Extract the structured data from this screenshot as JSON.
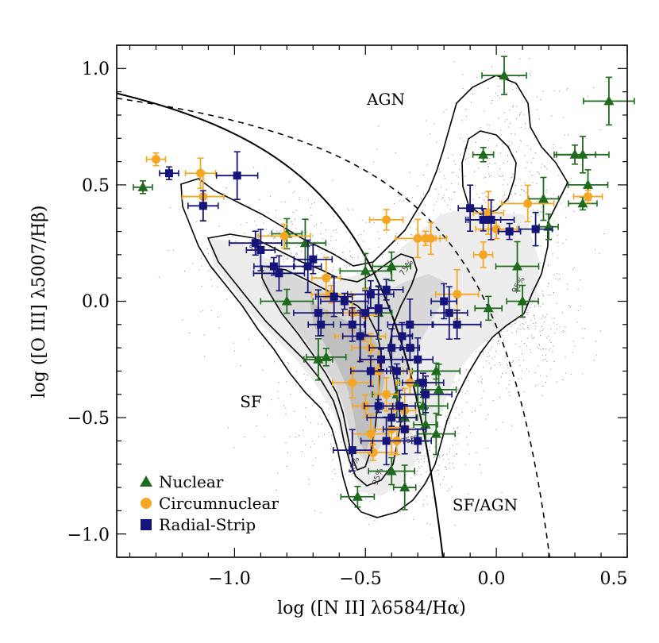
{
  "chart_data": {
    "type": "scatter",
    "xlabel": "log ([N II] λ6584/Hα)",
    "ylabel": "log ([O III] λ5007/Hβ)",
    "xlim": [
      -1.45,
      0.5
    ],
    "ylim": [
      -1.1,
      1.1
    ],
    "x_ticks": [
      "−1.0",
      "−0.5",
      "0.0",
      "0.5"
    ],
    "x_tick_values": [
      -1.0,
      -0.5,
      0.0,
      0.5
    ],
    "y_ticks": [
      "1.0",
      "0.5",
      "0.0",
      "−0.5",
      "−1.0"
    ],
    "y_tick_values": [
      1.0,
      0.5,
      0.0,
      -0.5,
      -1.0
    ],
    "region_labels": {
      "agn": "AGN",
      "sf": "SF",
      "composite": "SF/AGN"
    },
    "contour_labels": [
      "75%",
      "50%",
      "75%",
      "95%",
      "5%",
      "95%"
    ],
    "legend_position": "bottom-left",
    "series": [
      {
        "name": "Nuclear",
        "marker": "triangle",
        "color": "#1e6b1e",
        "points": [
          [
            -1.35,
            0.49
          ],
          [
            -0.8,
            0.29
          ],
          [
            -0.73,
            0.25
          ],
          [
            -0.8,
            -0.0
          ],
          [
            -0.68,
            -0.25
          ],
          [
            -0.65,
            -0.24
          ],
          [
            -0.5,
            0.13
          ],
          [
            -0.45,
            -0.05
          ],
          [
            -0.4,
            0.15
          ],
          [
            -0.38,
            -0.4
          ],
          [
            -0.35,
            -0.5
          ],
          [
            -0.3,
            -0.35
          ],
          [
            -0.23,
            -0.3
          ],
          [
            -0.27,
            -0.53
          ],
          [
            -0.22,
            -0.38
          ],
          [
            -0.4,
            -0.73
          ],
          [
            -0.35,
            -0.8
          ],
          [
            -0.53,
            -0.84
          ],
          [
            0.03,
            0.97
          ],
          [
            -0.05,
            0.63
          ],
          [
            0.1,
            -0.0
          ],
          [
            0.08,
            0.15
          ],
          [
            0.2,
            0.32
          ],
          [
            0.18,
            0.44
          ],
          [
            0.3,
            0.63
          ],
          [
            0.33,
            0.63
          ],
          [
            0.33,
            0.42
          ],
          [
            0.35,
            0.5
          ],
          [
            0.43,
            0.86
          ],
          [
            -0.03,
            -0.03
          ],
          [
            -0.23,
            -0.57
          ],
          [
            -0.28,
            -0.45
          ]
        ]
      },
      {
        "name": "Circumnuclear",
        "marker": "circle",
        "color": "#f5a623",
        "points": [
          [
            -1.3,
            0.61
          ],
          [
            -1.13,
            0.55
          ],
          [
            -1.12,
            0.45
          ],
          [
            -0.81,
            0.28
          ],
          [
            -0.65,
            0.1
          ],
          [
            -0.63,
            0.03
          ],
          [
            -0.55,
            -0.05
          ],
          [
            -0.5,
            -0.06
          ],
          [
            -0.48,
            -0.2
          ],
          [
            -0.45,
            -0.3
          ],
          [
            -0.5,
            -0.45
          ],
          [
            -0.48,
            -0.57
          ],
          [
            -0.47,
            -0.65
          ],
          [
            -0.42,
            -0.4
          ],
          [
            -0.4,
            -0.55
          ],
          [
            -0.38,
            -0.6
          ],
          [
            -0.35,
            -0.47
          ],
          [
            -0.42,
            0.35
          ],
          [
            -0.3,
            0.27
          ],
          [
            -0.27,
            0.27
          ],
          [
            -0.25,
            0.27
          ],
          [
            -0.15,
            0.03
          ],
          [
            -0.05,
            0.2
          ],
          [
            -0.03,
            0.38
          ],
          [
            0.0,
            0.31
          ],
          [
            0.12,
            0.42
          ],
          [
            0.35,
            0.45
          ],
          [
            -0.55,
            -0.35
          ],
          [
            -0.52,
            -0.15
          ],
          [
            -0.33,
            -0.35
          ]
        ]
      },
      {
        "name": "Radial-Strip",
        "marker": "square",
        "color": "#14147a",
        "points": [
          [
            -1.25,
            0.55
          ],
          [
            -1.12,
            0.41
          ],
          [
            -0.99,
            0.54
          ],
          [
            -0.92,
            0.25
          ],
          [
            -0.9,
            0.22
          ],
          [
            -0.85,
            0.15
          ],
          [
            -0.83,
            0.12
          ],
          [
            -0.72,
            0.15
          ],
          [
            -0.7,
            0.18
          ],
          [
            -0.68,
            -0.05
          ],
          [
            -0.67,
            -0.1
          ],
          [
            -0.62,
            0.02
          ],
          [
            -0.58,
            -0.0
          ],
          [
            -0.55,
            -0.1
          ],
          [
            -0.52,
            -0.15
          ],
          [
            -0.48,
            0.03
          ],
          [
            -0.45,
            -0.03
          ],
          [
            -0.42,
            0.05
          ],
          [
            -0.4,
            -0.2
          ],
          [
            -0.38,
            -0.3
          ],
          [
            -0.37,
            -0.45
          ],
          [
            -0.35,
            -0.55
          ],
          [
            -0.33,
            -0.2
          ],
          [
            -0.3,
            -0.25
          ],
          [
            -0.28,
            -0.35
          ],
          [
            -0.27,
            -0.4
          ],
          [
            -0.45,
            -0.45
          ],
          [
            -0.48,
            -0.3
          ],
          [
            -0.42,
            -0.6
          ],
          [
            -0.3,
            -0.6
          ],
          [
            -0.55,
            -0.64
          ],
          [
            -0.4,
            -0.5
          ],
          [
            -0.2,
            -0.0
          ],
          [
            -0.18,
            -0.05
          ],
          [
            -0.15,
            -0.1
          ],
          [
            -0.1,
            0.4
          ],
          [
            -0.05,
            0.35
          ],
          [
            -0.02,
            0.35
          ],
          [
            0.05,
            0.3
          ],
          [
            0.15,
            0.31
          ],
          [
            -0.33,
            -0.1
          ],
          [
            -0.36,
            -0.15
          ],
          [
            -0.5,
            -0.05
          ],
          [
            -0.44,
            -0.25
          ]
        ]
      }
    ]
  }
}
